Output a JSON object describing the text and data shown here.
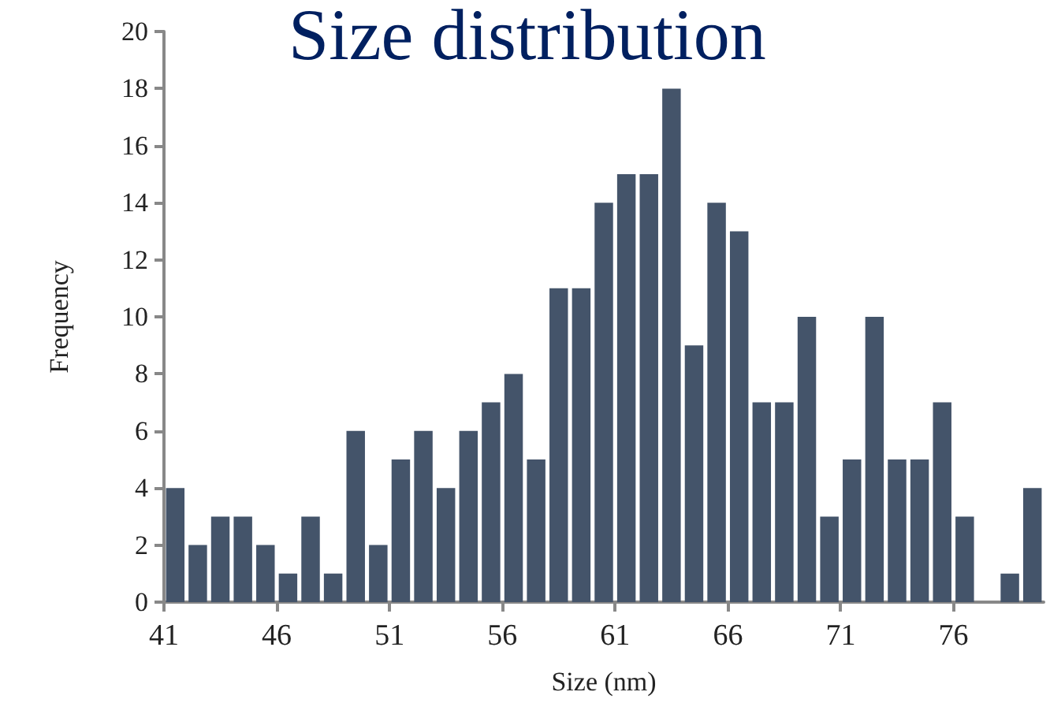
{
  "chart_data": {
    "type": "histogram",
    "title": "Size distribution",
    "xlabel": "Size (nm)",
    "ylabel": "Frequency",
    "bins": [
      41,
      42,
      43,
      44,
      45,
      46,
      47,
      48,
      49,
      50,
      51,
      52,
      53,
      54,
      55,
      56,
      57,
      58,
      59,
      60,
      61,
      62,
      63,
      64,
      65,
      66,
      67,
      68,
      69,
      70,
      71,
      72,
      73,
      74,
      75,
      76,
      77,
      78,
      79,
      80
    ],
    "values": [
      4,
      2,
      3,
      3,
      2,
      1,
      3,
      1,
      6,
      2,
      5,
      6,
      4,
      6,
      7,
      8,
      5,
      11,
      11,
      14,
      15,
      15,
      18,
      9,
      14,
      13,
      7,
      7,
      10,
      3,
      5,
      10,
      5,
      5,
      7,
      3,
      0,
      1,
      4
    ],
    "color": "#44546a",
    "xlim": [
      41,
      80
    ],
    "xticks": [
      41,
      46,
      51,
      56,
      61,
      66,
      71,
      76
    ],
    "ylim": [
      0,
      20
    ],
    "yticks": [
      0,
      2,
      4,
      6,
      8,
      10,
      12,
      14,
      16,
      18,
      20
    ]
  }
}
